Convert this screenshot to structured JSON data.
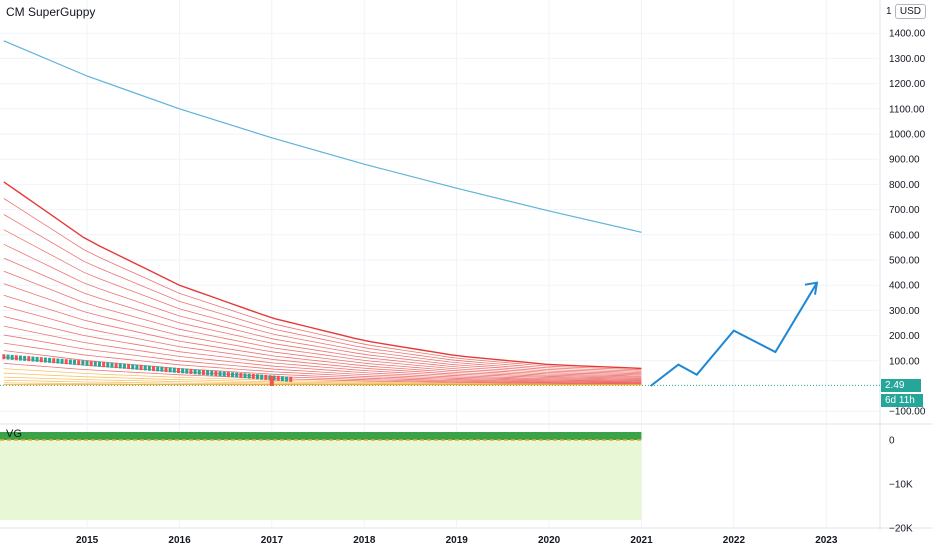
{
  "study": {
    "title": "CM SuperGuppy",
    "currency": "USD",
    "currency_suffix": "0",
    "top_partial_label": "1"
  },
  "price_tags": {
    "last": "2.49",
    "countdown": "6d 11h"
  },
  "lower_pane": {
    "title": "VG"
  },
  "colors": {
    "upper_curve": "#5fb3d8",
    "guppy_red": "#e53935",
    "guppy_orange": "#f5a623",
    "projection": "#1e88d6",
    "tag_green": "#26a69a",
    "vg_bar_dark": "#3aa34a",
    "vg_fill_light": "#e8f7d6"
  },
  "chart_data": [
    {
      "type": "line",
      "title": "",
      "x_ticks": [
        "2015",
        "2016",
        "2017",
        "2018",
        "2019",
        "2020",
        "2021",
        "2022",
        "2023"
      ],
      "y_ticks": [
        "1400.00",
        "1300.00",
        "1200.00",
        "1100.00",
        "1000.00",
        "900.00",
        "800.00",
        "700.00",
        "600.00",
        "500.00",
        "400.00",
        "300.00",
        "200.00",
        "100.00",
        "−100.00"
      ],
      "ylim": [
        -100,
        1450
      ],
      "grid": true,
      "series": [
        {
          "x": [
            2014.1,
            2015,
            2016,
            2017,
            2018,
            2019,
            2020,
            2021
          ],
          "values": [
            1370,
            1230,
            1100,
            985,
            880,
            785,
            695,
            610
          ]
        },
        {
          "x": [
            2014.1,
            2015,
            2016,
            2017,
            2018,
            2019,
            2020,
            2021
          ],
          "values": [
            810,
            580,
            400,
            270,
            180,
            120,
            85,
            70
          ]
        },
        {
          "x": [
            2021.1,
            2021.4,
            2021.6,
            2022,
            2022.45,
            2022.9
          ],
          "values": [
            0,
            85,
            45,
            220,
            135,
            410
          ]
        }
      ]
    },
    {
      "type": "area",
      "title": "",
      "y_ticks": [
        "0",
        "−10K",
        "−20K"
      ],
      "ylim": [
        -20000,
        2000
      ],
      "series": [
        {
          "x": [
            2014.1,
            2021
          ],
          "values": [
            0,
            0
          ]
        }
      ]
    }
  ]
}
